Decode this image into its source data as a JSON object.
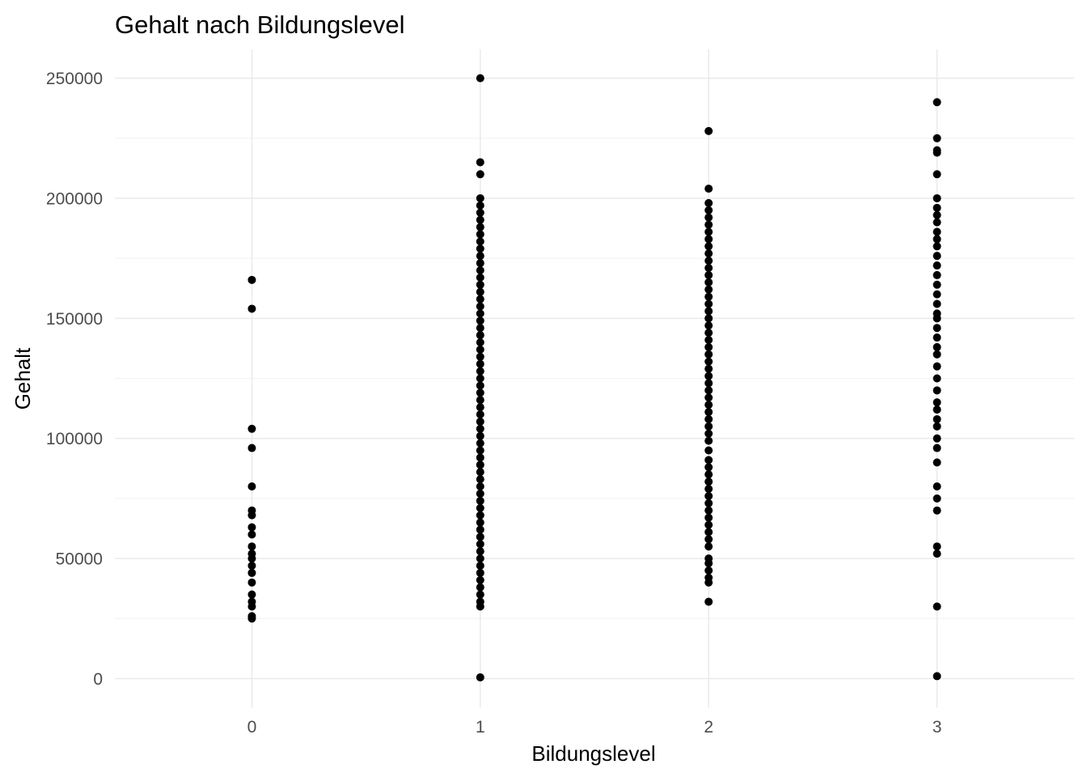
{
  "chart_data": {
    "type": "scatter",
    "title": "Gehalt nach Bildungslevel",
    "xlabel": "Bildungslevel",
    "ylabel": "Gehalt",
    "x_ticks": [
      0,
      1,
      2,
      3
    ],
    "x_tick_labels": [
      "0",
      "1",
      "2",
      "3"
    ],
    "xlim": [
      -0.6,
      3.6
    ],
    "y_ticks": [
      0,
      50000,
      100000,
      150000,
      200000,
      250000
    ],
    "y_tick_labels": [
      "0",
      "50000",
      "100000",
      "150000",
      "200000",
      "250000"
    ],
    "ylim": [
      -12000,
      262000
    ],
    "grid": true,
    "legend": "none",
    "point_color": "#000000",
    "points": [
      {
        "x": 0,
        "y": 166000
      },
      {
        "x": 0,
        "y": 154000
      },
      {
        "x": 0,
        "y": 104000
      },
      {
        "x": 0,
        "y": 96000
      },
      {
        "x": 0,
        "y": 80000
      },
      {
        "x": 0,
        "y": 70000
      },
      {
        "x": 0,
        "y": 68000
      },
      {
        "x": 0,
        "y": 63000
      },
      {
        "x": 0,
        "y": 60000
      },
      {
        "x": 0,
        "y": 55000
      },
      {
        "x": 0,
        "y": 52000
      },
      {
        "x": 0,
        "y": 50000
      },
      {
        "x": 0,
        "y": 47000
      },
      {
        "x": 0,
        "y": 44000
      },
      {
        "x": 0,
        "y": 40000
      },
      {
        "x": 0,
        "y": 35000
      },
      {
        "x": 0,
        "y": 32000
      },
      {
        "x": 0,
        "y": 30000
      },
      {
        "x": 0,
        "y": 26000
      },
      {
        "x": 0,
        "y": 25000
      },
      {
        "x": 1,
        "y": 250000
      },
      {
        "x": 1,
        "y": 215000
      },
      {
        "x": 1,
        "y": 210000
      },
      {
        "x": 1,
        "y": 200000
      },
      {
        "x": 1,
        "y": 197000
      },
      {
        "x": 1,
        "y": 194000
      },
      {
        "x": 1,
        "y": 191000
      },
      {
        "x": 1,
        "y": 188000
      },
      {
        "x": 1,
        "y": 185000
      },
      {
        "x": 1,
        "y": 182000
      },
      {
        "x": 1,
        "y": 179000
      },
      {
        "x": 1,
        "y": 176000
      },
      {
        "x": 1,
        "y": 173000
      },
      {
        "x": 1,
        "y": 170000
      },
      {
        "x": 1,
        "y": 167000
      },
      {
        "x": 1,
        "y": 164000
      },
      {
        "x": 1,
        "y": 161000
      },
      {
        "x": 1,
        "y": 158000
      },
      {
        "x": 1,
        "y": 155000
      },
      {
        "x": 1,
        "y": 152000
      },
      {
        "x": 1,
        "y": 149000
      },
      {
        "x": 1,
        "y": 146000
      },
      {
        "x": 1,
        "y": 143000
      },
      {
        "x": 1,
        "y": 140000
      },
      {
        "x": 1,
        "y": 137000
      },
      {
        "x": 1,
        "y": 134000
      },
      {
        "x": 1,
        "y": 131000
      },
      {
        "x": 1,
        "y": 128000
      },
      {
        "x": 1,
        "y": 125000
      },
      {
        "x": 1,
        "y": 122000
      },
      {
        "x": 1,
        "y": 119000
      },
      {
        "x": 1,
        "y": 116000
      },
      {
        "x": 1,
        "y": 113000
      },
      {
        "x": 1,
        "y": 110000
      },
      {
        "x": 1,
        "y": 107000
      },
      {
        "x": 1,
        "y": 104000
      },
      {
        "x": 1,
        "y": 101000
      },
      {
        "x": 1,
        "y": 98000
      },
      {
        "x": 1,
        "y": 95000
      },
      {
        "x": 1,
        "y": 92000
      },
      {
        "x": 1,
        "y": 89000
      },
      {
        "x": 1,
        "y": 86000
      },
      {
        "x": 1,
        "y": 83000
      },
      {
        "x": 1,
        "y": 80000
      },
      {
        "x": 1,
        "y": 77000
      },
      {
        "x": 1,
        "y": 74000
      },
      {
        "x": 1,
        "y": 71000
      },
      {
        "x": 1,
        "y": 68000
      },
      {
        "x": 1,
        "y": 65000
      },
      {
        "x": 1,
        "y": 62000
      },
      {
        "x": 1,
        "y": 59000
      },
      {
        "x": 1,
        "y": 56000
      },
      {
        "x": 1,
        "y": 53000
      },
      {
        "x": 1,
        "y": 50000
      },
      {
        "x": 1,
        "y": 47000
      },
      {
        "x": 1,
        "y": 44000
      },
      {
        "x": 1,
        "y": 41000
      },
      {
        "x": 1,
        "y": 38000
      },
      {
        "x": 1,
        "y": 35000
      },
      {
        "x": 1,
        "y": 32000
      },
      {
        "x": 1,
        "y": 30000
      },
      {
        "x": 1,
        "y": 500
      },
      {
        "x": 2,
        "y": 228000
      },
      {
        "x": 2,
        "y": 204000
      },
      {
        "x": 2,
        "y": 198000
      },
      {
        "x": 2,
        "y": 195000
      },
      {
        "x": 2,
        "y": 192000
      },
      {
        "x": 2,
        "y": 189000
      },
      {
        "x": 2,
        "y": 186000
      },
      {
        "x": 2,
        "y": 183000
      },
      {
        "x": 2,
        "y": 180000
      },
      {
        "x": 2,
        "y": 177000
      },
      {
        "x": 2,
        "y": 174000
      },
      {
        "x": 2,
        "y": 171000
      },
      {
        "x": 2,
        "y": 168000
      },
      {
        "x": 2,
        "y": 165000
      },
      {
        "x": 2,
        "y": 162000
      },
      {
        "x": 2,
        "y": 159000
      },
      {
        "x": 2,
        "y": 156000
      },
      {
        "x": 2,
        "y": 153000
      },
      {
        "x": 2,
        "y": 150000
      },
      {
        "x": 2,
        "y": 147000
      },
      {
        "x": 2,
        "y": 144000
      },
      {
        "x": 2,
        "y": 141000
      },
      {
        "x": 2,
        "y": 138000
      },
      {
        "x": 2,
        "y": 135000
      },
      {
        "x": 2,
        "y": 132000
      },
      {
        "x": 2,
        "y": 129000
      },
      {
        "x": 2,
        "y": 126000
      },
      {
        "x": 2,
        "y": 123000
      },
      {
        "x": 2,
        "y": 120000
      },
      {
        "x": 2,
        "y": 117000
      },
      {
        "x": 2,
        "y": 114000
      },
      {
        "x": 2,
        "y": 111000
      },
      {
        "x": 2,
        "y": 108000
      },
      {
        "x": 2,
        "y": 105000
      },
      {
        "x": 2,
        "y": 102000
      },
      {
        "x": 2,
        "y": 99000
      },
      {
        "x": 2,
        "y": 95000
      },
      {
        "x": 2,
        "y": 91000
      },
      {
        "x": 2,
        "y": 88000
      },
      {
        "x": 2,
        "y": 85000
      },
      {
        "x": 2,
        "y": 82000
      },
      {
        "x": 2,
        "y": 79000
      },
      {
        "x": 2,
        "y": 76000
      },
      {
        "x": 2,
        "y": 73000
      },
      {
        "x": 2,
        "y": 70000
      },
      {
        "x": 2,
        "y": 67000
      },
      {
        "x": 2,
        "y": 64000
      },
      {
        "x": 2,
        "y": 61000
      },
      {
        "x": 2,
        "y": 58000
      },
      {
        "x": 2,
        "y": 55000
      },
      {
        "x": 2,
        "y": 50000
      },
      {
        "x": 2,
        "y": 48000
      },
      {
        "x": 2,
        "y": 45000
      },
      {
        "x": 2,
        "y": 42000
      },
      {
        "x": 2,
        "y": 40000
      },
      {
        "x": 2,
        "y": 32000
      },
      {
        "x": 3,
        "y": 240000
      },
      {
        "x": 3,
        "y": 225000
      },
      {
        "x": 3,
        "y": 220000
      },
      {
        "x": 3,
        "y": 219000
      },
      {
        "x": 3,
        "y": 210000
      },
      {
        "x": 3,
        "y": 200000
      },
      {
        "x": 3,
        "y": 196000
      },
      {
        "x": 3,
        "y": 193000
      },
      {
        "x": 3,
        "y": 190000
      },
      {
        "x": 3,
        "y": 186000
      },
      {
        "x": 3,
        "y": 183000
      },
      {
        "x": 3,
        "y": 180000
      },
      {
        "x": 3,
        "y": 176000
      },
      {
        "x": 3,
        "y": 172000
      },
      {
        "x": 3,
        "y": 168000
      },
      {
        "x": 3,
        "y": 164000
      },
      {
        "x": 3,
        "y": 160000
      },
      {
        "x": 3,
        "y": 156000
      },
      {
        "x": 3,
        "y": 152000
      },
      {
        "x": 3,
        "y": 150000
      },
      {
        "x": 3,
        "y": 146000
      },
      {
        "x": 3,
        "y": 142000
      },
      {
        "x": 3,
        "y": 138000
      },
      {
        "x": 3,
        "y": 135000
      },
      {
        "x": 3,
        "y": 130000
      },
      {
        "x": 3,
        "y": 125000
      },
      {
        "x": 3,
        "y": 120000
      },
      {
        "x": 3,
        "y": 115000
      },
      {
        "x": 3,
        "y": 112000
      },
      {
        "x": 3,
        "y": 108000
      },
      {
        "x": 3,
        "y": 105000
      },
      {
        "x": 3,
        "y": 100000
      },
      {
        "x": 3,
        "y": 96000
      },
      {
        "x": 3,
        "y": 90000
      },
      {
        "x": 3,
        "y": 80000
      },
      {
        "x": 3,
        "y": 75000
      },
      {
        "x": 3,
        "y": 70000
      },
      {
        "x": 3,
        "y": 55000
      },
      {
        "x": 3,
        "y": 52000
      },
      {
        "x": 3,
        "y": 30000
      },
      {
        "x": 3,
        "y": 1000
      }
    ]
  }
}
